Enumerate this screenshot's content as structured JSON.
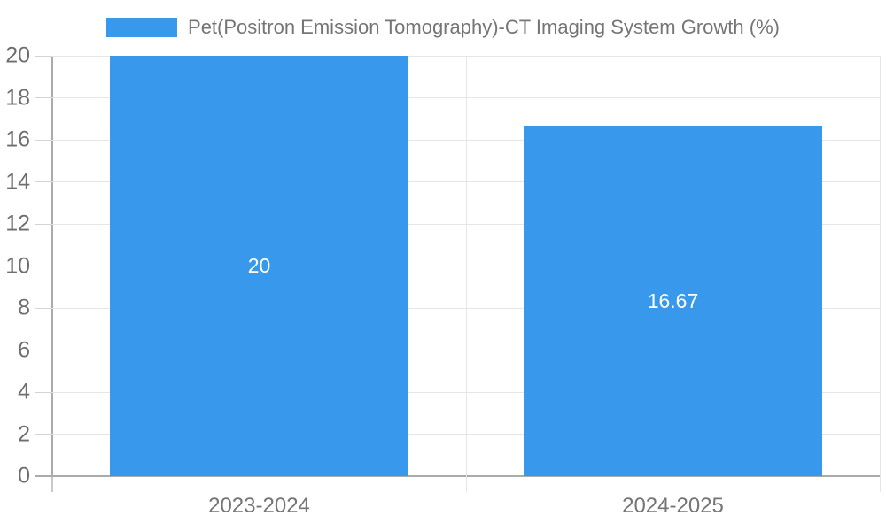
{
  "chart_data": {
    "type": "bar",
    "title": "Pet(Positron Emission Tomography)-CT Imaging System Growth (%)",
    "categories": [
      "2023-2024",
      "2024-2025"
    ],
    "values": [
      20,
      16.67
    ],
    "bar_labels": [
      "20",
      "16.67"
    ],
    "xlabel": "",
    "ylabel": "",
    "ylim": [
      0,
      20
    ],
    "ytick_step": 2,
    "ytick_labels": [
      "0",
      "2",
      "4",
      "6",
      "8",
      "10",
      "12",
      "14",
      "16",
      "18",
      "20"
    ],
    "grid": true,
    "legend_position": "top-center",
    "colors": {
      "bar": "#3899EC",
      "bar_label": "#FFFFFF",
      "axis_line": "#ABABAB",
      "gridline": "#E6E6E6",
      "tick_mark": "#D4D4D4",
      "tick_label": "#6E6E6E",
      "title_text": "#757575",
      "background": "#FFFFFF"
    }
  }
}
